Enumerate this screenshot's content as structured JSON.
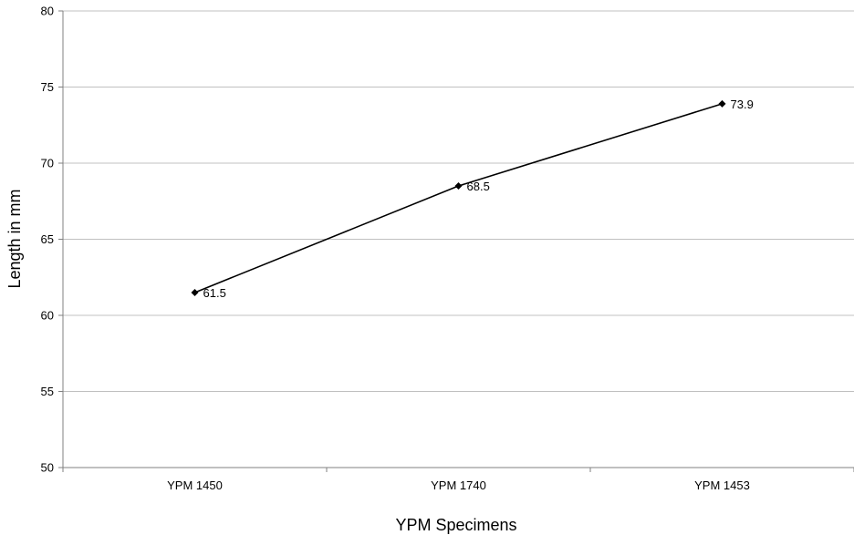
{
  "chart_data": {
    "type": "line",
    "title": "",
    "xlabel": "YPM Specimens",
    "ylabel": "Length in mm",
    "categories": [
      "YPM 1450",
      "YPM 1740",
      "YPM 1453"
    ],
    "series": [
      {
        "values": [
          61.5,
          68.5,
          73.9
        ],
        "data_labels": [
          "61.5",
          "68.5",
          "73.9"
        ],
        "color": "#000000",
        "marker": "diamond"
      }
    ],
    "ylim": [
      50,
      80
    ],
    "yticks": [
      50,
      55,
      60,
      65,
      70,
      75,
      80
    ],
    "ytick_labels": [
      "50",
      "55",
      "60",
      "65",
      "70",
      "75",
      "80"
    ],
    "grid": true,
    "gridline_color": "#c0c0c0",
    "axis_color": "#808080",
    "legend": "none"
  }
}
